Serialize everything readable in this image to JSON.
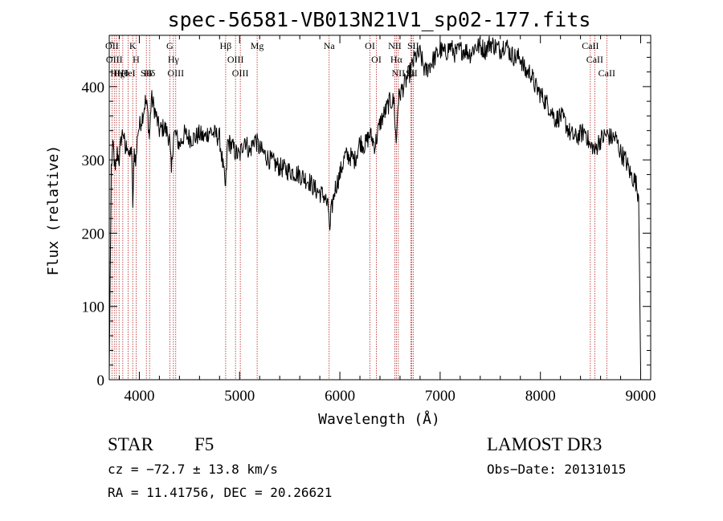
{
  "chart_data": {
    "type": "line",
    "title": "spec-56581-VB013N21V1_sp02-177.fits",
    "xlabel": "Wavelength (Å)",
    "ylabel": "Flux (relative)",
    "xlim": [
      3700,
      9100
    ],
    "ylim": [
      0,
      470
    ],
    "xticks": [
      4000,
      5000,
      6000,
      7000,
      8000,
      9000
    ],
    "yticks": [
      0,
      100,
      200,
      300,
      400
    ],
    "grid": false,
    "series": [
      {
        "name": "flux",
        "x": [
          3700,
          3720,
          3740,
          3760,
          3780,
          3800,
          3820,
          3840,
          3860,
          3880,
          3900,
          3920,
          3935,
          3950,
          3968,
          3985,
          4000,
          4030,
          4060,
          4080,
          4100,
          4120,
          4150,
          4200,
          4250,
          4300,
          4320,
          4340,
          4360,
          4400,
          4450,
          4500,
          4550,
          4600,
          4650,
          4700,
          4750,
          4800,
          4861,
          4880,
          4920,
          4960,
          5000,
          5050,
          5100,
          5150,
          5200,
          5300,
          5400,
          5500,
          5600,
          5700,
          5750,
          5800,
          5850,
          5890,
          5900,
          5910,
          5950,
          6000,
          6050,
          6100,
          6150,
          6200,
          6250,
          6300,
          6350,
          6400,
          6450,
          6500,
          6540,
          6562,
          6580,
          6600,
          6650,
          6700,
          6750,
          6800,
          6850,
          6900,
          6950,
          7000,
          7050,
          7100,
          7150,
          7200,
          7250,
          7300,
          7350,
          7400,
          7450,
          7500,
          7550,
          7600,
          7650,
          7700,
          7750,
          7800,
          7850,
          7900,
          7950,
          8000,
          8050,
          8100,
          8150,
          8200,
          8250,
          8300,
          8350,
          8400,
          8450,
          8498,
          8520,
          8542,
          8580,
          8620,
          8662,
          8700,
          8750,
          8800,
          8850,
          8900,
          8950,
          8980,
          9000
        ],
        "values": [
          5,
          290,
          320,
          280,
          310,
          300,
          330,
          340,
          310,
          325,
          300,
          320,
          240,
          310,
          300,
          340,
          345,
          360,
          380,
          370,
          330,
          385,
          370,
          340,
          345,
          330,
          280,
          335,
          335,
          320,
          335,
          330,
          330,
          335,
          330,
          340,
          335,
          330,
          260,
          325,
          320,
          310,
          305,
          330,
          310,
          330,
          315,
          300,
          290,
          285,
          280,
          270,
          260,
          255,
          250,
          230,
          195,
          225,
          260,
          280,
          305,
          305,
          300,
          325,
          320,
          335,
          320,
          350,
          365,
          380,
          380,
          320,
          380,
          390,
          405,
          420,
          440,
          445,
          420,
          430,
          440,
          450,
          445,
          455,
          445,
          450,
          450,
          445,
          455,
          455,
          450,
          460,
          455,
          450,
          460,
          445,
          440,
          440,
          420,
          420,
          400,
          390,
          380,
          370,
          355,
          360,
          350,
          335,
          330,
          335,
          340,
          315,
          320,
          310,
          325,
          330,
          335,
          330,
          330,
          310,
          300,
          280,
          270,
          250,
          10
        ]
      }
    ],
    "line_markers": [
      {
        "wavelength": 3727,
        "label": "OII"
      },
      {
        "wavelength": 3750,
        "label": "OIII"
      },
      {
        "wavelength": 3771,
        "label": "Hη"
      },
      {
        "wavelength": 3798,
        "label": "Hζ"
      },
      {
        "wavelength": 3835,
        "label": "Hθ"
      },
      {
        "wavelength": 3889,
        "label": "HeI"
      },
      {
        "wavelength": 3934,
        "label": "K"
      },
      {
        "wavelength": 3968,
        "label": "H"
      },
      {
        "wavelength": 4070,
        "label": "SII"
      },
      {
        "wavelength": 4102,
        "label": "Hδ"
      },
      {
        "wavelength": 4304,
        "label": "G"
      },
      {
        "wavelength": 4340,
        "label": "Hγ"
      },
      {
        "wavelength": 4363,
        "label": "OIII"
      },
      {
        "wavelength": 4861,
        "label": "Hβ"
      },
      {
        "wavelength": 4959,
        "label": "OIII"
      },
      {
        "wavelength": 5007,
        "label": "OIII"
      },
      {
        "wavelength": 5175,
        "label": "Mg"
      },
      {
        "wavelength": 5893,
        "label": "Na"
      },
      {
        "wavelength": 6300,
        "label": "OI"
      },
      {
        "wavelength": 6364,
        "label": "OI"
      },
      {
        "wavelength": 6548,
        "label": "NII"
      },
      {
        "wavelength": 6563,
        "label": "Hα"
      },
      {
        "wavelength": 6583,
        "label": "NII"
      },
      {
        "wavelength": 6708,
        "label": "Li"
      },
      {
        "wavelength": 6716,
        "label": "SII"
      },
      {
        "wavelength": 6731,
        "label": "SII"
      },
      {
        "wavelength": 8498,
        "label": "CaII"
      },
      {
        "wavelength": 8542,
        "label": "CaII"
      },
      {
        "wavelength": 8662,
        "label": "CaII"
      }
    ]
  },
  "info": {
    "object_class": "STAR",
    "subclass": "F5",
    "survey": "LAMOST DR3",
    "cz": "cz = −72.7 ± 13.8 km/s",
    "obs_date": "Obs−Date: 20131015",
    "coords": "RA =  11.41756, DEC =  20.26621"
  },
  "colors": {
    "marker_line": "#b22222",
    "spectrum": "#000000",
    "axes": "#000000"
  }
}
